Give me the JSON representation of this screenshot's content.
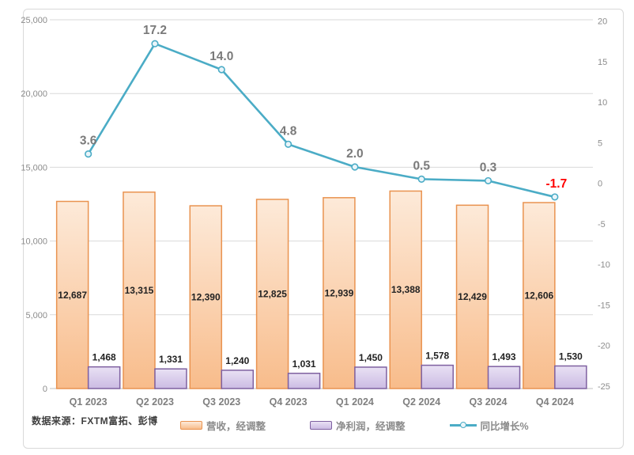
{
  "chart_data": {
    "type": "combo-bar-line",
    "categories": [
      "Q1 2023",
      "Q2 2023",
      "Q3 2023",
      "Q4 2023",
      "Q1 2024",
      "Q2 2024",
      "Q3 2024",
      "Q4 2024"
    ],
    "series": [
      {
        "name": "营收，经调整",
        "type": "bar",
        "axis": "left",
        "values": [
          12687,
          13315,
          12390,
          12825,
          12939,
          13388,
          12429,
          12606
        ],
        "labels": [
          "12,687",
          "13,315",
          "12,390",
          "12,825",
          "12,939",
          "13,388",
          "12,429",
          "12,606"
        ]
      },
      {
        "name": "净利润，经调整",
        "type": "bar",
        "axis": "left",
        "values": [
          1468,
          1331,
          1240,
          1031,
          1450,
          1578,
          1493,
          1530
        ],
        "labels": [
          "1,468",
          "1,331",
          "1,240",
          "1,031",
          "1,450",
          "1,578",
          "1,493",
          "1,530"
        ]
      },
      {
        "name": "同比增长%",
        "type": "line",
        "axis": "right",
        "values": [
          3.6,
          17.2,
          14.0,
          4.8,
          2.0,
          0.5,
          0.3,
          -1.7
        ],
        "labels": [
          "3.6",
          "17.2",
          "14.0",
          "4.8",
          "2.0",
          "0.5",
          "0.3",
          "-1.7"
        ]
      }
    ],
    "left_axis": {
      "min": 0,
      "max": 25000,
      "tick_values": [
        0,
        5000,
        10000,
        15000,
        20000,
        25000
      ],
      "tick_labels": [
        "0",
        "5,000",
        "10,000",
        "15,000",
        "20,000",
        "25,000"
      ]
    },
    "right_axis": {
      "tick_values": [
        20,
        15,
        10,
        5,
        0,
        -5,
        -10,
        -15,
        -20,
        -25
      ],
      "tick_labels": [
        "20",
        "15",
        "10",
        "5",
        "0",
        "-5",
        "-10",
        "-15",
        "-20",
        "-25"
      ]
    },
    "grid": true,
    "legend_position": "bottom"
  },
  "source_note": "数据来源：FXTM富拓、彭博",
  "colors": {
    "revenue_fill_top": "#fdead9",
    "revenue_fill_bottom": "#f8bc8b",
    "revenue_border": "#e99350",
    "profit_fill_top": "#e9e1f4",
    "profit_fill_bottom": "#cbbbe3",
    "profit_border": "#7e60a0",
    "growth_line": "#4bacc6",
    "marker_fill": "#eaf5fa",
    "gridline": "#d9d9d9",
    "axis_line": "#bfbfbf",
    "axis_text": "#8c8c8c",
    "category_text": "#7f7f7f",
    "bar_label": "#222222",
    "line_label": "#7a7a7a",
    "line_label_negative": "#ff0000",
    "frame_border": "#d9d9d9"
  }
}
